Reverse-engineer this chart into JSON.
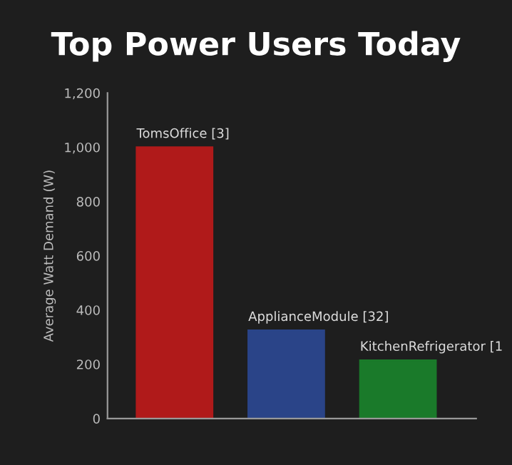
{
  "chart_data": {
    "type": "bar",
    "title": "Top Power Users Today",
    "ylabel": "Average Watt Demand (W)",
    "categories": [
      "TomsOffice [3]",
      "ApplianceModule [32]",
      "KitchenRefrigerator [1"
    ],
    "values": [
      1000,
      325,
      215
    ],
    "colors": [
      "#b01a1a",
      "#2a4488",
      "#1a7a2a"
    ],
    "ylim": [
      0,
      1200
    ],
    "yticks": [
      0,
      200,
      400,
      600,
      800,
      {
        "value": 1000,
        "label": "1,000"
      },
      {
        "value": 1200,
        "label": "1,200"
      }
    ],
    "grid": false
  }
}
